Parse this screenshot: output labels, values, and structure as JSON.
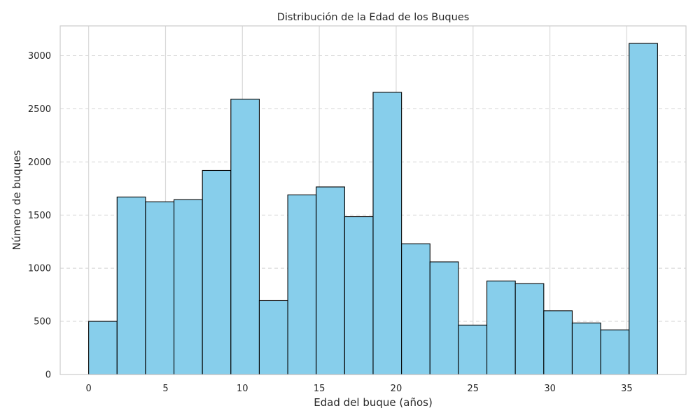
{
  "chart_data": {
    "type": "bar",
    "title": "Distribución de la Edad de los Buques",
    "xlabel": "Edad del buque (años)",
    "ylabel": "Número de buques",
    "xlim": [
      -1.85,
      38.85
    ],
    "ylim": [
      0,
      3280
    ],
    "x_ticks": [
      0,
      5,
      10,
      15,
      20,
      25,
      30,
      35
    ],
    "y_ticks": [
      0,
      500,
      1000,
      1500,
      2000,
      2500,
      3000
    ],
    "bin_edges": [
      0,
      1.85,
      3.7,
      5.55,
      7.4,
      9.25,
      11.1,
      12.95,
      14.8,
      16.65,
      18.5,
      20.35,
      22.2,
      24.05,
      25.9,
      27.75,
      29.6,
      31.45,
      33.3,
      35.15,
      37
    ],
    "values": [
      500,
      1670,
      1625,
      1645,
      1920,
      2590,
      695,
      1690,
      1765,
      1485,
      2655,
      1230,
      1060,
      465,
      880,
      855,
      600,
      485,
      420,
      3115
    ],
    "grid": {
      "x": "solid",
      "y": "dashed"
    },
    "colors": {
      "bar_fill": "#87CEEB",
      "bar_edge": "#000000",
      "grid": "#d9d9d9",
      "axes_edge": "#cccccc"
    }
  }
}
